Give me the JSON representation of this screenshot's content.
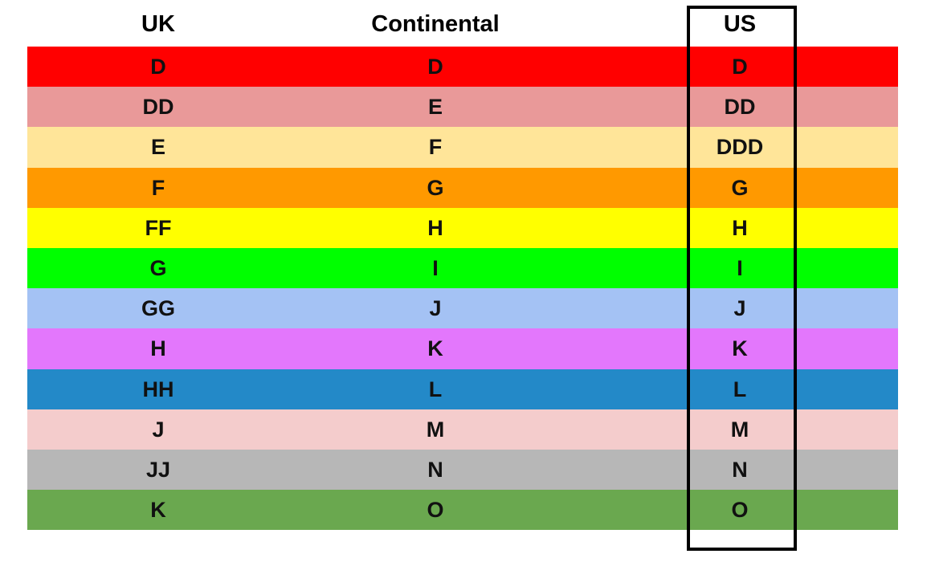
{
  "headers": [
    "UK",
    "Continental",
    "US"
  ],
  "rows": [
    {
      "color": "#ff0000",
      "cells": [
        "D",
        "D",
        "D"
      ]
    },
    {
      "color": "#e99999",
      "cells": [
        "DD",
        "E",
        "DD"
      ]
    },
    {
      "color": "#ffe599",
      "cells": [
        "E",
        "F",
        "DDD"
      ]
    },
    {
      "color": "#ff9900",
      "cells": [
        "F",
        "G",
        "G"
      ]
    },
    {
      "color": "#ffff00",
      "cells": [
        "FF",
        "H",
        "H"
      ]
    },
    {
      "color": "#00ff00",
      "cells": [
        "G",
        "I",
        "I"
      ]
    },
    {
      "color": "#a4c2f4",
      "cells": [
        "GG",
        "J",
        "J"
      ]
    },
    {
      "color": "#e377fc",
      "cells": [
        "H",
        "K",
        "K"
      ]
    },
    {
      "color": "#2389c8",
      "cells": [
        "HH",
        "L",
        "L"
      ]
    },
    {
      "color": "#f4cccc",
      "cells": [
        "J",
        "M",
        "M"
      ]
    },
    {
      "color": "#b7b7b7",
      "cells": [
        "JJ",
        "N",
        "N"
      ]
    },
    {
      "color": "#6aa84f",
      "cells": [
        "K",
        "O",
        "O"
      ]
    }
  ],
  "highlighted_column": "US"
}
